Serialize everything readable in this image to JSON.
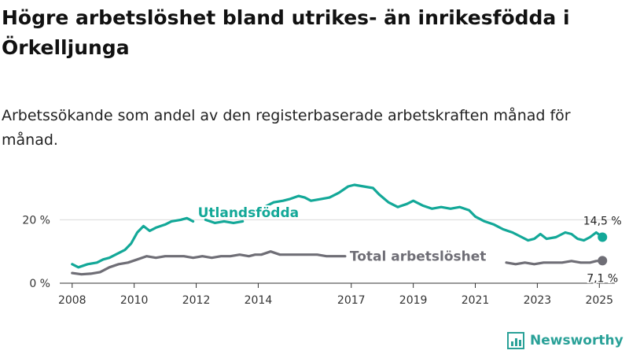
{
  "title": "Högre arbetslöshet bland utrikes- än inrikesfödda i Örkelljunga",
  "subtitle": "Arbetssökande som andel av den registerbaserade arbetskraften månad för månad.",
  "brand": "Newsworthy",
  "colors": {
    "utlandsfodda": "#13a898",
    "total": "#6f6e76",
    "grid": "#d9d9d9",
    "brand": "#2aa198"
  },
  "chart_data": {
    "type": "line",
    "x_unit": "year (decimal)",
    "xlim": [
      2007.6,
      2025.5
    ],
    "ylim": [
      0,
      31.5
    ],
    "y_ticks": [
      {
        "value": 0,
        "label": "0 %"
      },
      {
        "value": 20,
        "label": "20 %"
      }
    ],
    "x_ticks": [
      {
        "value": 2008,
        "label": "2008"
      },
      {
        "value": 2010,
        "label": "2010"
      },
      {
        "value": 2012,
        "label": "2012"
      },
      {
        "value": 2014,
        "label": "2014"
      },
      {
        "value": 2017,
        "label": "2017"
      },
      {
        "value": 2019,
        "label": "2019"
      },
      {
        "value": 2021,
        "label": "2021"
      },
      {
        "value": 2023,
        "label": "2023"
      },
      {
        "value": 2025,
        "label": "2025"
      }
    ],
    "series": [
      {
        "key": "utlandsfodda",
        "name": "Utlandsfödda",
        "end_label": "14,5 %",
        "points": [
          [
            2008.0,
            6.0
          ],
          [
            2008.2,
            5.0
          ],
          [
            2008.5,
            6.0
          ],
          [
            2008.8,
            6.5
          ],
          [
            2009.0,
            7.5
          ],
          [
            2009.2,
            8.0
          ],
          [
            2009.5,
            9.5
          ],
          [
            2009.7,
            10.5
          ],
          [
            2009.9,
            12.5
          ],
          [
            2010.1,
            16.0
          ],
          [
            2010.3,
            18.0
          ],
          [
            2010.5,
            16.5
          ],
          [
            2010.7,
            17.5
          ],
          [
            2011.0,
            18.5
          ],
          [
            2011.2,
            19.5
          ],
          [
            2011.5,
            20.0
          ],
          [
            2011.7,
            20.5
          ],
          [
            2011.9,
            19.5
          ],
          null,
          [
            2012.3,
            20.0
          ],
          [
            2012.6,
            19.0
          ],
          [
            2012.9,
            19.5
          ],
          [
            2013.2,
            19.0
          ],
          [
            2013.5,
            19.5
          ],
          null,
          [
            2014.2,
            24.0
          ],
          [
            2014.5,
            25.5
          ],
          [
            2014.8,
            26.0
          ],
          [
            2015.0,
            26.5
          ],
          [
            2015.3,
            27.5
          ],
          [
            2015.5,
            27.0
          ],
          [
            2015.7,
            26.0
          ],
          [
            2016.0,
            26.5
          ],
          [
            2016.3,
            27.0
          ],
          [
            2016.6,
            28.5
          ],
          [
            2016.9,
            30.5
          ],
          [
            2017.1,
            31.0
          ],
          [
            2017.4,
            30.5
          ],
          [
            2017.7,
            30.0
          ],
          [
            2017.9,
            28.0
          ],
          [
            2018.2,
            25.5
          ],
          [
            2018.5,
            24.0
          ],
          [
            2018.8,
            25.0
          ],
          [
            2019.0,
            26.0
          ],
          [
            2019.3,
            24.5
          ],
          [
            2019.6,
            23.5
          ],
          [
            2019.9,
            24.0
          ],
          [
            2020.2,
            23.5
          ],
          [
            2020.5,
            24.0
          ],
          [
            2020.8,
            23.0
          ],
          [
            2021.0,
            21.0
          ],
          [
            2021.3,
            19.5
          ],
          [
            2021.6,
            18.5
          ],
          [
            2021.9,
            17.0
          ],
          [
            2022.2,
            16.0
          ],
          [
            2022.5,
            14.5
          ],
          [
            2022.7,
            13.5
          ],
          [
            2022.9,
            14.0
          ],
          [
            2023.1,
            15.5
          ],
          [
            2023.3,
            14.0
          ],
          [
            2023.6,
            14.5
          ],
          [
            2023.9,
            16.0
          ],
          [
            2024.1,
            15.5
          ],
          [
            2024.3,
            14.0
          ],
          [
            2024.5,
            13.5
          ],
          [
            2024.7,
            14.5
          ],
          [
            2024.9,
            16.0
          ],
          [
            2025.1,
            14.5
          ]
        ]
      },
      {
        "key": "total",
        "name": "Total arbetslöshet",
        "end_label": "7,1 %",
        "points": [
          [
            2008.0,
            3.2
          ],
          [
            2008.3,
            2.8
          ],
          [
            2008.6,
            3.0
          ],
          [
            2008.9,
            3.5
          ],
          [
            2009.2,
            5.0
          ],
          [
            2009.5,
            6.0
          ],
          [
            2009.8,
            6.5
          ],
          [
            2010.1,
            7.5
          ],
          [
            2010.4,
            8.5
          ],
          [
            2010.7,
            8.0
          ],
          [
            2011.0,
            8.5
          ],
          [
            2011.3,
            8.5
          ],
          [
            2011.6,
            8.5
          ],
          [
            2011.9,
            8.0
          ],
          [
            2012.2,
            8.5
          ],
          [
            2012.5,
            8.0
          ],
          [
            2012.8,
            8.5
          ],
          [
            2013.1,
            8.5
          ],
          [
            2013.4,
            9.0
          ],
          [
            2013.7,
            8.5
          ],
          [
            2013.9,
            9.0
          ],
          [
            2014.1,
            9.0
          ],
          [
            2014.4,
            10.0
          ],
          [
            2014.7,
            9.0
          ],
          [
            2015.0,
            9.0
          ],
          [
            2015.3,
            9.0
          ],
          [
            2015.6,
            9.0
          ],
          [
            2015.9,
            9.0
          ],
          [
            2016.2,
            8.5
          ],
          [
            2016.5,
            8.5
          ],
          [
            2016.8,
            8.5
          ],
          null,
          [
            2022.0,
            6.5
          ],
          [
            2022.3,
            6.0
          ],
          [
            2022.6,
            6.5
          ],
          [
            2022.9,
            6.0
          ],
          [
            2023.2,
            6.5
          ],
          [
            2023.5,
            6.5
          ],
          [
            2023.8,
            6.5
          ],
          [
            2024.1,
            7.0
          ],
          [
            2024.4,
            6.5
          ],
          [
            2024.7,
            6.5
          ],
          [
            2024.9,
            7.0
          ],
          [
            2025.1,
            7.1
          ]
        ]
      }
    ]
  }
}
